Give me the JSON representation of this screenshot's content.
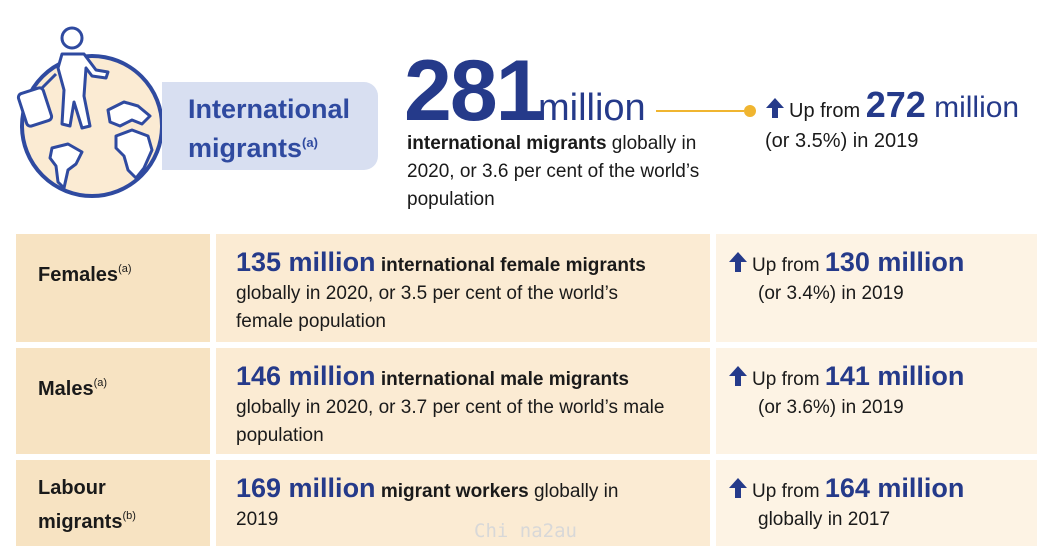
{
  "header": {
    "title_line1": "International",
    "title_line2": "migrants",
    "title_note": "(a)",
    "big_number": "281",
    "big_unit": "million",
    "desc_bold": "international migrants",
    "desc_rest": " globally in 2020, or 3.6 per cent of the world’s population",
    "up_prefix": "Up from ",
    "up_value": "272",
    "up_unit": " million",
    "up_line2": "(or 3.5%) in 2019"
  },
  "rows": [
    {
      "label": "Females",
      "label_note": "(a)",
      "value": "135 million",
      "desc_bold": "international female migrants",
      "desc_rest": "globally in 2020, or 3.5 per cent of the world’s female population",
      "up_prefix": "Up from ",
      "up_value": "130 million",
      "up_line2": "(or 3.4%) in 2019"
    },
    {
      "label": "Males",
      "label_note": "(a)",
      "value": "146 million",
      "desc_bold": "international male migrants",
      "desc_rest": "globally in 2020, or 3.7 per cent of the world’s male population",
      "up_prefix": "Up from ",
      "up_value": "141 million",
      "up_line2": "(or 3.6%) in 2019"
    },
    {
      "label_line1": "Labour",
      "label_line2": "migrants",
      "label_note": "(b)",
      "value": "169 million",
      "desc_bold": "migrant workers",
      "desc_rest_inline": " globally in",
      "desc_rest": "2019",
      "up_prefix": "Up from ",
      "up_value": "164 million",
      "up_line2": "globally in 2017"
    }
  ],
  "watermark": "Chi na2au",
  "colors": {
    "navy": "#253a8a",
    "title_blue": "#2f4aa0",
    "pill": "#d8dff1",
    "accent_gold": "#f0b530",
    "col1_bg": "#f7e3c2",
    "col2_bg": "#fbebd3",
    "col3_bg": "#fdf3e4"
  },
  "icons": [
    "globe-migrant-icon",
    "up-arrow-icon"
  ]
}
